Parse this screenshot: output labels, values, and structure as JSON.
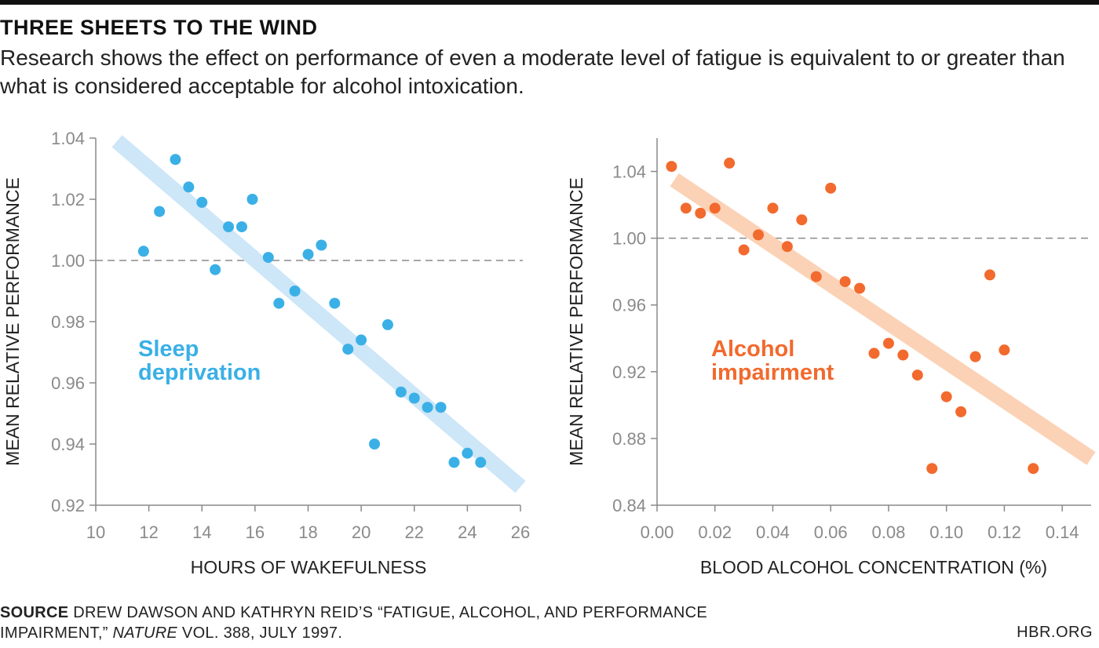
{
  "header": {
    "title": "THREE SHEETS TO THE WIND",
    "subtitle": "Research shows the effect on performance of even a moderate level of fatigue is equivalent to or greater than what is considered acceptable for alcohol intoxication."
  },
  "chart_data": [
    {
      "type": "scatter",
      "xlabel": "HOURS OF WAKEFULNESS",
      "ylabel": "MEAN RELATIVE PERFORMANCE",
      "annotation": [
        "Sleep",
        "deprivation"
      ],
      "color": "#3ab0e6",
      "trend_color": "#cde6f8",
      "xlim": [
        10,
        26
      ],
      "ylim": [
        0.92,
        1.04
      ],
      "xticks": [
        10,
        12,
        14,
        16,
        18,
        20,
        22,
        24,
        26
      ],
      "xtick_labels": [
        "10",
        "12",
        "14",
        "16",
        "18",
        "20",
        "22",
        "24",
        "26"
      ],
      "yticks": [
        0.92,
        0.94,
        0.96,
        0.98,
        1.0,
        1.02,
        1.04
      ],
      "ytick_labels": [
        "0.92",
        "0.94",
        "0.96",
        "0.98",
        "1.00",
        "1.02",
        "1.04"
      ],
      "reference_line_y": 1.0,
      "trend_line": [
        [
          10.8,
          1.039
        ],
        [
          26.0,
          0.926
        ]
      ],
      "points": [
        {
          "x": 11.8,
          "y": 1.003
        },
        {
          "x": 12.4,
          "y": 1.016
        },
        {
          "x": 13.0,
          "y": 1.033
        },
        {
          "x": 13.5,
          "y": 1.024
        },
        {
          "x": 14.0,
          "y": 1.019
        },
        {
          "x": 14.5,
          "y": 0.997
        },
        {
          "x": 15.0,
          "y": 1.011
        },
        {
          "x": 15.5,
          "y": 1.011
        },
        {
          "x": 15.9,
          "y": 1.02
        },
        {
          "x": 16.5,
          "y": 1.001
        },
        {
          "x": 16.9,
          "y": 0.986
        },
        {
          "x": 17.5,
          "y": 0.99
        },
        {
          "x": 18.0,
          "y": 1.002
        },
        {
          "x": 18.5,
          "y": 1.005
        },
        {
          "x": 19.0,
          "y": 0.986
        },
        {
          "x": 19.5,
          "y": 0.971
        },
        {
          "x": 20.0,
          "y": 0.974
        },
        {
          "x": 20.5,
          "y": 0.94
        },
        {
          "x": 21.0,
          "y": 0.979
        },
        {
          "x": 21.5,
          "y": 0.957
        },
        {
          "x": 22.0,
          "y": 0.955
        },
        {
          "x": 22.5,
          "y": 0.952
        },
        {
          "x": 23.0,
          "y": 0.952
        },
        {
          "x": 23.5,
          "y": 0.934
        },
        {
          "x": 24.0,
          "y": 0.937
        },
        {
          "x": 24.5,
          "y": 0.934
        }
      ]
    },
    {
      "type": "scatter",
      "xlabel": "BLOOD ALCOHOL CONCENTRATION (%)",
      "ylabel": "MEAN RELATIVE PERFORMANCE",
      "annotation": [
        "Alcohol",
        "impairment"
      ],
      "color": "#f26a2e",
      "trend_color": "#fbd2b6",
      "xlim": [
        0.0,
        0.15
      ],
      "ylim": [
        0.84,
        1.06
      ],
      "xticks": [
        0.0,
        0.02,
        0.04,
        0.06,
        0.08,
        0.1,
        0.12,
        0.14
      ],
      "xtick_labels": [
        "0.00",
        "0.02",
        "0.04",
        "0.06",
        "0.08",
        "0.10",
        "0.12",
        "0.14"
      ],
      "yticks": [
        0.84,
        0.88,
        0.92,
        0.96,
        1.0,
        1.04
      ],
      "ytick_labels": [
        "0.84",
        "0.88",
        "0.92",
        "0.96",
        "1.00",
        "1.04"
      ],
      "reference_line_y": 1.0,
      "trend_line": [
        [
          0.006,
          1.035
        ],
        [
          0.15,
          0.868
        ]
      ],
      "points": [
        {
          "x": 0.005,
          "y": 1.043
        },
        {
          "x": 0.01,
          "y": 1.018
        },
        {
          "x": 0.015,
          "y": 1.015
        },
        {
          "x": 0.02,
          "y": 1.018
        },
        {
          "x": 0.025,
          "y": 1.045
        },
        {
          "x": 0.03,
          "y": 0.993
        },
        {
          "x": 0.035,
          "y": 1.002
        },
        {
          "x": 0.04,
          "y": 1.018
        },
        {
          "x": 0.045,
          "y": 0.995
        },
        {
          "x": 0.05,
          "y": 1.011
        },
        {
          "x": 0.055,
          "y": 0.977
        },
        {
          "x": 0.06,
          "y": 1.03
        },
        {
          "x": 0.065,
          "y": 0.974
        },
        {
          "x": 0.07,
          "y": 0.97
        },
        {
          "x": 0.075,
          "y": 0.931
        },
        {
          "x": 0.08,
          "y": 0.937
        },
        {
          "x": 0.085,
          "y": 0.93
        },
        {
          "x": 0.09,
          "y": 0.918
        },
        {
          "x": 0.095,
          "y": 0.862
        },
        {
          "x": 0.1,
          "y": 0.905
        },
        {
          "x": 0.105,
          "y": 0.896
        },
        {
          "x": 0.11,
          "y": 0.929
        },
        {
          "x": 0.115,
          "y": 0.978
        },
        {
          "x": 0.12,
          "y": 0.933
        },
        {
          "x": 0.13,
          "y": 0.862
        }
      ]
    }
  ],
  "footer": {
    "source_label": "SOURCE",
    "source_text_1": " DREW DAWSON AND KATHRYN REID’S “FATIGUE, ALCOHOL, AND PERFORMANCE",
    "source_text_2a": "IMPAIRMENT,” ",
    "source_journal": "NATURE",
    "source_text_2b": " VOL. 388, JULY 1997.",
    "credit": "HBR.ORG"
  }
}
